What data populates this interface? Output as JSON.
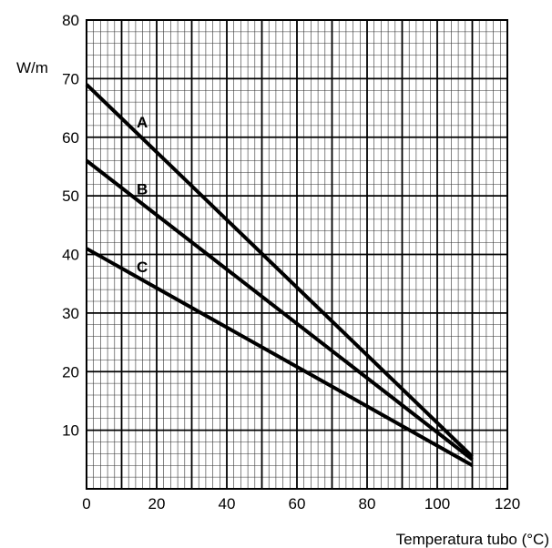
{
  "chart_data": {
    "type": "line",
    "title": "",
    "xlabel": "Temperatura tubo (°C)",
    "ylabel": "W/m",
    "xlim": [
      0,
      120
    ],
    "ylim": [
      0,
      80
    ],
    "xticks": [
      0,
      20,
      40,
      60,
      80,
      100,
      120
    ],
    "yticks": [
      10,
      20,
      30,
      40,
      50,
      60,
      70,
      80
    ],
    "grid": true,
    "series": [
      {
        "name": "A",
        "x": [
          0,
          110
        ],
        "y": [
          69,
          5.5
        ]
      },
      {
        "name": "B",
        "x": [
          0,
          110
        ],
        "y": [
          56,
          5
        ]
      },
      {
        "name": "C",
        "x": [
          0,
          110
        ],
        "y": [
          41,
          4
        ]
      }
    ]
  }
}
